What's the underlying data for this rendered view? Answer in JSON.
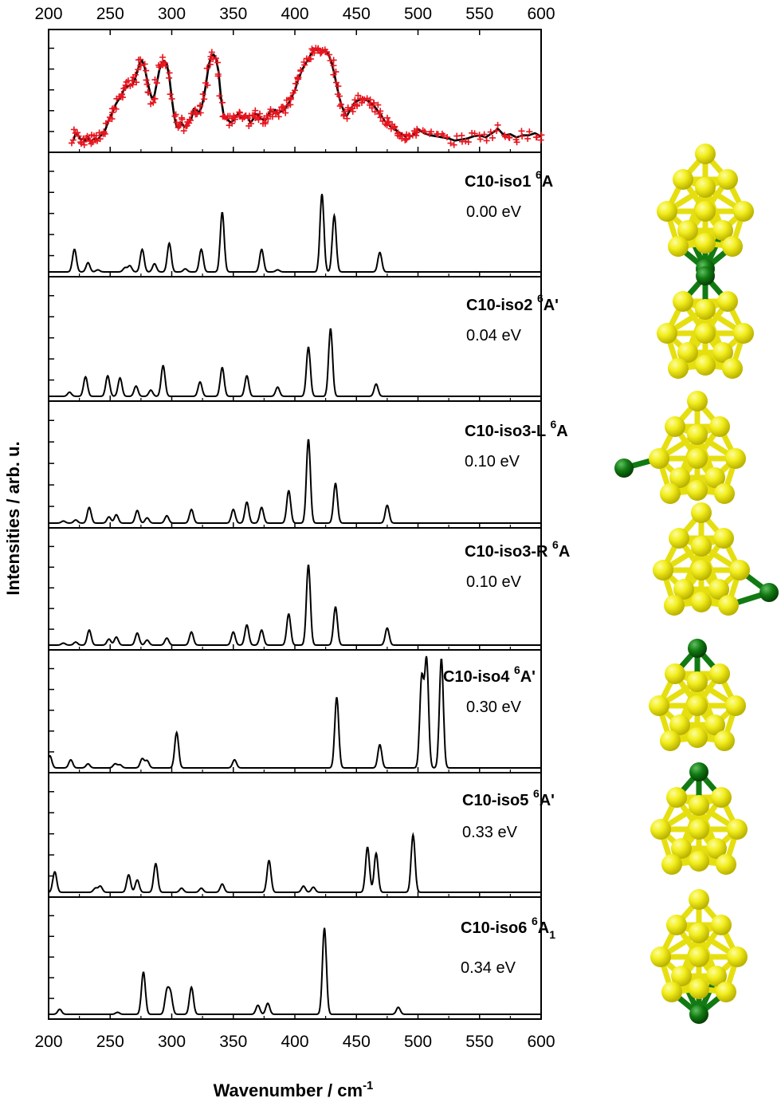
{
  "chart_data": {
    "type": "line",
    "xlabel": "Wavenumber / cm",
    "xlabel_sup": "-1",
    "ylabel": "Intensities / arb. u.",
    "xlim": [
      200,
      600
    ],
    "xticks": [
      "200",
      "250",
      "300",
      "350",
      "400",
      "450",
      "500",
      "550",
      "600"
    ],
    "xtick_values": [
      200,
      250,
      300,
      350,
      400,
      450,
      500,
      550,
      600
    ],
    "experiment": {
      "line_color": "#000000",
      "marker_color": "#e8141e",
      "marker": "plus",
      "ylim": [
        0,
        1.05
      ],
      "x": [
        220,
        222,
        224,
        226,
        228,
        230,
        232,
        234,
        236,
        238,
        240,
        242,
        244,
        246,
        248,
        250,
        252,
        254,
        256,
        258,
        260,
        262,
        264,
        266,
        268,
        270,
        272,
        274,
        276,
        278,
        280,
        282,
        284,
        286,
        288,
        290,
        292,
        294,
        296,
        298,
        300,
        302,
        304,
        306,
        308,
        310,
        312,
        314,
        316,
        318,
        320,
        322,
        324,
        326,
        328,
        330,
        332,
        334,
        336,
        338,
        340,
        342,
        344,
        346,
        348,
        350,
        352,
        354,
        356,
        358,
        360,
        362,
        364,
        366,
        368,
        370,
        372,
        374,
        376,
        378,
        380,
        382,
        384,
        386,
        388,
        390,
        392,
        394,
        396,
        398,
        400,
        402,
        404,
        406,
        408,
        410,
        412,
        414,
        416,
        418,
        420,
        422,
        424,
        426,
        428,
        430,
        432,
        434,
        436,
        438,
        440,
        442,
        444,
        446,
        448,
        450,
        452,
        454,
        456,
        458,
        460,
        462,
        464,
        466,
        468,
        470,
        472,
        474,
        476,
        478,
        480,
        482,
        484,
        486,
        488,
        490,
        492,
        494,
        496,
        498,
        500,
        505,
        510,
        515,
        520,
        525,
        530,
        535,
        540,
        545,
        550,
        555,
        560,
        565,
        570,
        575,
        580,
        585,
        590,
        595,
        600
      ],
      "y": [
        0.05,
        0.12,
        0.1,
        0.06,
        0.07,
        0.05,
        0.08,
        0.04,
        0.06,
        0.07,
        0.06,
        0.09,
        0.12,
        0.15,
        0.22,
        0.27,
        0.32,
        0.38,
        0.42,
        0.45,
        0.5,
        0.55,
        0.56,
        0.57,
        0.58,
        0.62,
        0.7,
        0.78,
        0.8,
        0.74,
        0.62,
        0.52,
        0.44,
        0.48,
        0.6,
        0.72,
        0.78,
        0.8,
        0.77,
        0.65,
        0.45,
        0.28,
        0.18,
        0.17,
        0.22,
        0.18,
        0.2,
        0.22,
        0.26,
        0.35,
        0.34,
        0.31,
        0.36,
        0.45,
        0.6,
        0.76,
        0.84,
        0.86,
        0.82,
        0.7,
        0.45,
        0.3,
        0.26,
        0.24,
        0.22,
        0.24,
        0.28,
        0.3,
        0.27,
        0.27,
        0.28,
        0.26,
        0.22,
        0.25,
        0.3,
        0.29,
        0.26,
        0.25,
        0.24,
        0.28,
        0.33,
        0.32,
        0.34,
        0.3,
        0.32,
        0.33,
        0.35,
        0.39,
        0.42,
        0.47,
        0.52,
        0.6,
        0.66,
        0.72,
        0.76,
        0.8,
        0.84,
        0.88,
        0.9,
        0.9,
        0.91,
        0.9,
        0.9,
        0.88,
        0.84,
        0.78,
        0.68,
        0.57,
        0.46,
        0.38,
        0.32,
        0.28,
        0.32,
        0.36,
        0.4,
        0.42,
        0.43,
        0.44,
        0.44,
        0.43,
        0.42,
        0.4,
        0.38,
        0.35,
        0.32,
        0.29,
        0.25,
        0.22,
        0.2,
        0.18,
        0.16,
        0.15,
        0.13,
        0.12,
        0.1,
        0.09,
        0.1,
        0.09,
        0.1,
        0.13,
        0.16,
        0.12,
        0.1,
        0.09,
        0.08,
        0.07,
        0.05,
        0.06,
        0.07,
        0.09,
        0.1,
        0.08,
        0.12,
        0.16,
        0.1,
        0.11,
        0.08,
        0.1,
        0.1,
        0.12,
        0.09
      ]
    },
    "isomers": [
      {
        "name": "C10-iso1",
        "sup": "6",
        "term": "A",
        "sub": "",
        "energy": "0.00 eV",
        "peaks": [
          [
            221,
            0.22
          ],
          [
            232,
            0.09
          ],
          [
            240,
            0.02
          ],
          [
            262,
            0.04
          ],
          [
            266,
            0.06
          ],
          [
            276,
            0.22
          ],
          [
            286,
            0.08
          ],
          [
            298,
            0.28
          ],
          [
            311,
            0.03
          ],
          [
            324,
            0.22
          ],
          [
            341,
            0.58
          ],
          [
            373,
            0.22
          ],
          [
            386,
            0.02
          ],
          [
            422,
            0.76
          ],
          [
            432,
            0.55
          ],
          [
            469,
            0.19
          ]
        ]
      },
      {
        "name": "C10-iso2",
        "sup": "6",
        "term": "A'",
        "sub": "",
        "energy": "0.04 eV",
        "peaks": [
          [
            217,
            0.04
          ],
          [
            230,
            0.19
          ],
          [
            248,
            0.2
          ],
          [
            258,
            0.18
          ],
          [
            271,
            0.1
          ],
          [
            283,
            0.06
          ],
          [
            293,
            0.3
          ],
          [
            323,
            0.14
          ],
          [
            341,
            0.28
          ],
          [
            361,
            0.2
          ],
          [
            386,
            0.09
          ],
          [
            411,
            0.48
          ],
          [
            429,
            0.66
          ],
          [
            466,
            0.12
          ]
        ]
      },
      {
        "name": "C10-iso3-L",
        "sup": "6",
        "term": "A",
        "sub": "",
        "energy": "0.10 eV",
        "peaks": [
          [
            212,
            0.02
          ],
          [
            222,
            0.03
          ],
          [
            233,
            0.15
          ],
          [
            249,
            0.06
          ],
          [
            255,
            0.08
          ],
          [
            272,
            0.12
          ],
          [
            280,
            0.05
          ],
          [
            296,
            0.07
          ],
          [
            316,
            0.13
          ],
          [
            350,
            0.13
          ],
          [
            361,
            0.2
          ],
          [
            373,
            0.15
          ],
          [
            395,
            0.31
          ],
          [
            411,
            0.8
          ],
          [
            433,
            0.38
          ],
          [
            475,
            0.17
          ]
        ]
      },
      {
        "name": "C10-iso3-R",
        "sup": "6",
        "term": "A",
        "sub": "",
        "energy": "0.10 eV",
        "peaks": [
          [
            212,
            0.02
          ],
          [
            222,
            0.03
          ],
          [
            233,
            0.15
          ],
          [
            249,
            0.06
          ],
          [
            255,
            0.08
          ],
          [
            272,
            0.12
          ],
          [
            280,
            0.05
          ],
          [
            296,
            0.07
          ],
          [
            316,
            0.13
          ],
          [
            350,
            0.13
          ],
          [
            361,
            0.2
          ],
          [
            373,
            0.15
          ],
          [
            395,
            0.31
          ],
          [
            411,
            0.8
          ],
          [
            433,
            0.38
          ],
          [
            475,
            0.17
          ]
        ]
      },
      {
        "name": "C10-iso4",
        "sup": "6",
        "term": "A'",
        "sub": "",
        "energy": "0.30 eV",
        "peaks": [
          [
            201,
            0.12
          ],
          [
            218,
            0.08
          ],
          [
            232,
            0.04
          ],
          [
            254,
            0.04
          ],
          [
            258,
            0.03
          ],
          [
            276,
            0.09
          ],
          [
            280,
            0.07
          ],
          [
            304,
            0.35
          ],
          [
            351,
            0.08
          ],
          [
            434,
            0.7
          ],
          [
            469,
            0.23
          ],
          [
            503,
            0.88
          ],
          [
            507,
            1.06
          ],
          [
            519,
            1.08
          ]
        ]
      },
      {
        "name": "C10-iso5",
        "sup": "6",
        "term": "A'",
        "sub": "A'",
        "energy": "0.33 eV",
        "peaks": [
          [
            205,
            0.2
          ],
          [
            238,
            0.04
          ],
          [
            242,
            0.06
          ],
          [
            265,
            0.17
          ],
          [
            272,
            0.12
          ],
          [
            287,
            0.28
          ],
          [
            308,
            0.04
          ],
          [
            324,
            0.04
          ],
          [
            341,
            0.08
          ],
          [
            379,
            0.31
          ],
          [
            407,
            0.06
          ],
          [
            415,
            0.05
          ],
          [
            459,
            0.44
          ],
          [
            466,
            0.38
          ],
          [
            496,
            0.56
          ]
        ]
      },
      {
        "name": "C10-iso6",
        "sup": "6",
        "term": "A",
        "sub": "1",
        "energy": "0.34 eV",
        "peaks": [
          [
            209,
            0.05
          ],
          [
            256,
            0.02
          ],
          [
            277,
            0.42
          ],
          [
            296,
            0.22
          ],
          [
            299,
            0.2
          ],
          [
            316,
            0.27
          ],
          [
            370,
            0.09
          ],
          [
            378,
            0.11
          ],
          [
            424,
            0.86
          ],
          [
            484,
            0.07
          ]
        ]
      }
    ],
    "grid": false,
    "legend": "none"
  },
  "colors": {
    "peak_line": "#000000",
    "cluster_gold": "#f2ee1c",
    "cluster_gold_dark": "#c9c100",
    "cluster_green": "#127a12"
  }
}
